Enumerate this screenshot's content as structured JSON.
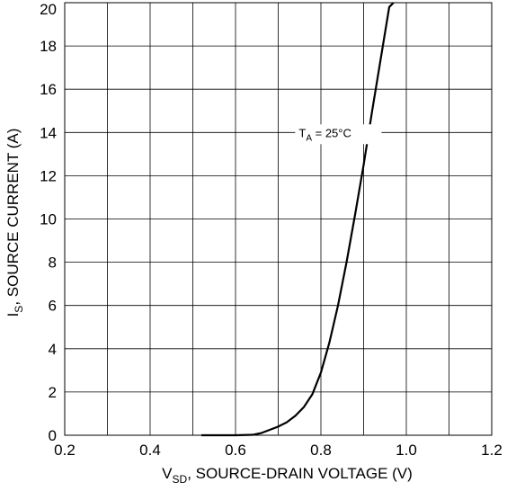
{
  "chart_data": {
    "type": "line",
    "title": "",
    "xlabel": {
      "main": "V",
      "sub": "SD",
      "rest": ", SOURCE-DRAIN VOLTAGE (V)"
    },
    "ylabel": {
      "main": "I",
      "sub": "S",
      "rest": ", SOURCE CURRENT (A)"
    },
    "xlim": [
      0.2,
      1.2
    ],
    "ylim": [
      0,
      20
    ],
    "x_ticks": [
      0.2,
      0.3,
      0.4,
      0.5,
      0.6,
      0.7,
      0.8,
      0.9,
      1.0,
      1.1,
      1.2
    ],
    "x_tick_labels": [
      "0.2",
      "",
      "0.4",
      "",
      "0.6",
      "",
      "0.8",
      "",
      "1.0",
      "",
      "1.2"
    ],
    "y_ticks": [
      0,
      2,
      4,
      6,
      8,
      10,
      12,
      14,
      16,
      18,
      20
    ],
    "y_tick_labels": [
      "0",
      "2",
      "4",
      "6",
      "8",
      "10",
      "12",
      "14",
      "16",
      "18",
      "20"
    ],
    "grid": true,
    "annotation": {
      "main": "T",
      "sub": "A",
      "rest": " = 25°C",
      "x": 0.845,
      "y": 14
    },
    "series": [
      {
        "x": [
          0.52,
          0.55,
          0.6,
          0.64,
          0.66,
          0.68,
          0.7,
          0.72,
          0.74,
          0.76,
          0.78,
          0.8,
          0.82,
          0.84,
          0.86,
          0.88,
          0.9,
          0.92,
          0.94,
          0.96,
          0.97
        ],
        "y": [
          0.0,
          0.0,
          0.0,
          0.02,
          0.1,
          0.25,
          0.4,
          0.6,
          0.9,
          1.3,
          1.9,
          2.9,
          4.3,
          6.0,
          8.0,
          10.2,
          12.5,
          15.0,
          17.4,
          19.8,
          20.0
        ]
      }
    ]
  }
}
